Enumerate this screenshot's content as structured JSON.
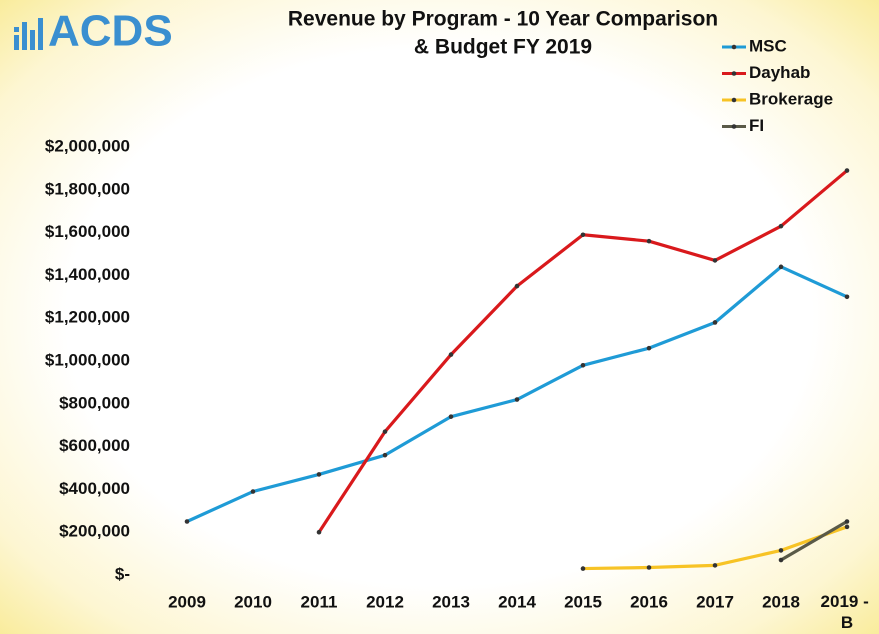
{
  "chart_data": {
    "type": "line",
    "logo": "ACDS",
    "title": [
      "Revenue by Program - 10 Year Comparison",
      "& Budget FY 2019"
    ],
    "categories": [
      "2009",
      "2010",
      "2011",
      "2012",
      "2013",
      "2014",
      "2015",
      "2016",
      "2017",
      "2018",
      "2019 - B"
    ],
    "series": [
      {
        "name": "MSC",
        "color": "#1f9bd6",
        "values": [
          250000,
          390000,
          470000,
          560000,
          740000,
          820000,
          980000,
          1060000,
          1180000,
          1440000,
          1300000
        ]
      },
      {
        "name": "Dayhab",
        "color": "#d9191c",
        "values": [
          null,
          null,
          200000,
          670000,
          1030000,
          1350000,
          1590000,
          1560000,
          1470000,
          1630000,
          1890000
        ]
      },
      {
        "name": "Brokerage",
        "color": "#f7c325",
        "values": [
          null,
          null,
          null,
          null,
          null,
          null,
          30000,
          35000,
          45000,
          115000,
          225000
        ]
      },
      {
        "name": "FI",
        "color": "#5a5a48",
        "values": [
          null,
          null,
          null,
          null,
          null,
          null,
          null,
          null,
          null,
          70000,
          250000
        ]
      }
    ],
    "ylim": [
      0,
      2000000
    ],
    "yticks": [
      {
        "value": 0,
        "label": "$-"
      },
      {
        "value": 200000,
        "label": "$200,000"
      },
      {
        "value": 400000,
        "label": "$400,000"
      },
      {
        "value": 600000,
        "label": "$600,000"
      },
      {
        "value": 800000,
        "label": "$800,000"
      },
      {
        "value": 1000000,
        "label": "$1,000,000"
      },
      {
        "value": 1200000,
        "label": "$1,200,000"
      },
      {
        "value": 1400000,
        "label": "$1,400,000"
      },
      {
        "value": 1600000,
        "label": "$1,600,000"
      },
      {
        "value": 1800000,
        "label": "$1,800,000"
      },
      {
        "value": 2000000,
        "label": "$2,000,000"
      }
    ],
    "legend": "top-right",
    "grid": false
  }
}
